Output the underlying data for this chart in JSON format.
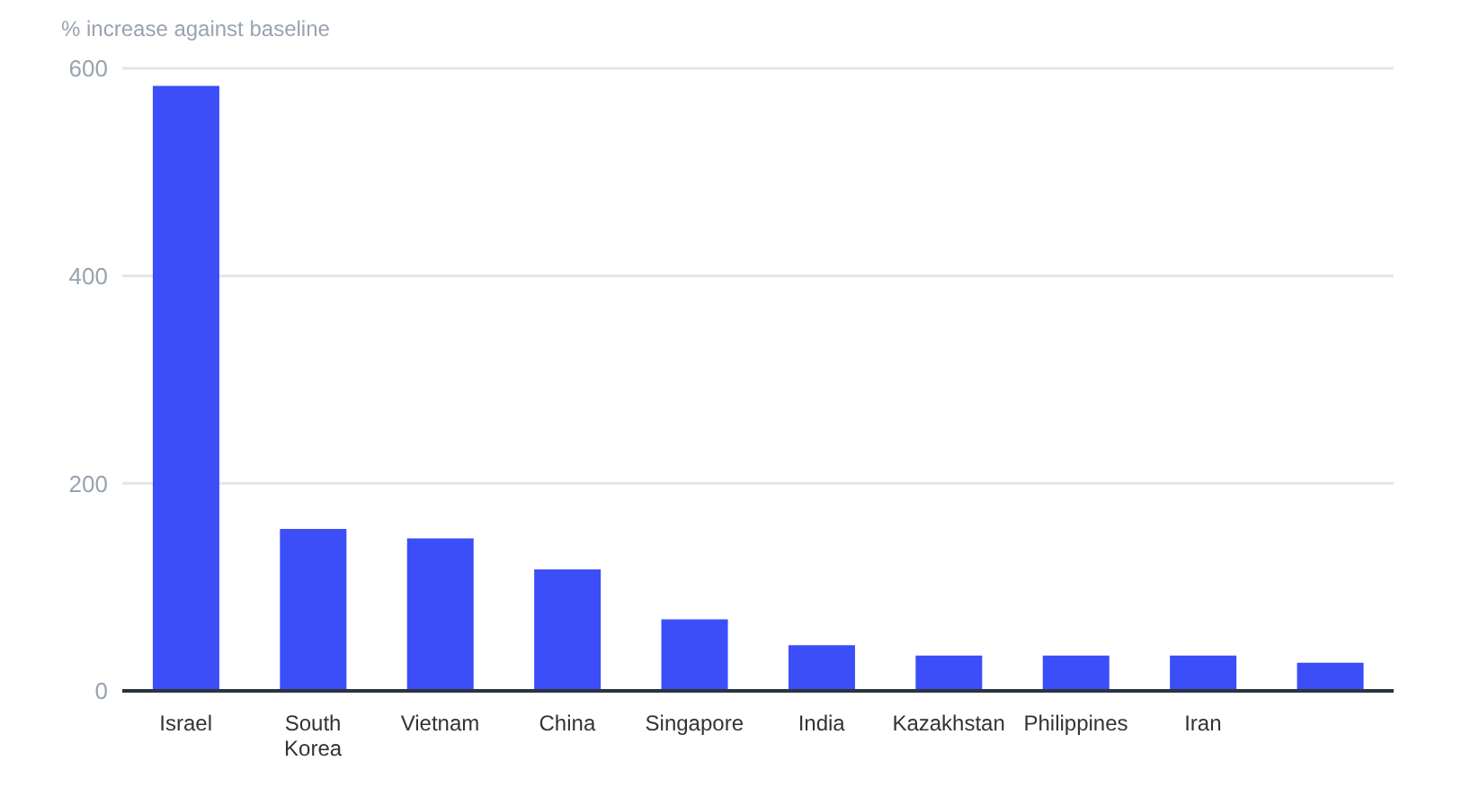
{
  "chart_data": {
    "type": "bar",
    "ylabel": "% increase against baseline",
    "categories": [
      "Israel",
      "South Korea",
      "Vietnam",
      "China",
      "Singapore",
      "India",
      "Kazakhstan",
      "Philippines",
      "Iran",
      null
    ],
    "values": [
      583,
      156,
      147,
      117,
      69,
      44,
      34,
      34,
      34,
      27
    ],
    "color": "#3b4ef8",
    "ylim": [
      0,
      600
    ],
    "yticks": [
      0,
      200,
      400,
      600
    ],
    "grid": "y"
  }
}
